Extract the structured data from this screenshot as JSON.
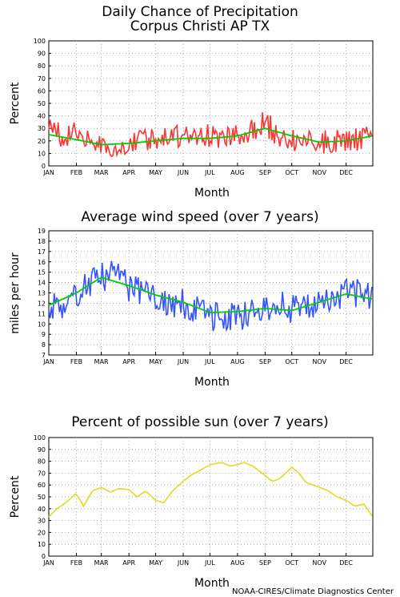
{
  "credit": "NOAA-CIRES/Climate Diagnostics Center",
  "months": [
    "JAN",
    "FEB",
    "MAR",
    "APR",
    "MAY",
    "JUN",
    "JUL",
    "AUG",
    "SEP",
    "OCT",
    "NOV",
    "DEC"
  ],
  "chart_data": [
    {
      "type": "line",
      "title": "Daily Chance of Precipitation",
      "subtitle": "Corpus Christi AP TX",
      "xlabel": "Month",
      "ylabel": "Percent",
      "ylim": [
        0,
        100
      ],
      "yticks": [
        0,
        10,
        20,
        30,
        40,
        50,
        60,
        70,
        80,
        90,
        100
      ],
      "grid": true,
      "series": [
        {
          "color": "#ff3333",
          "style": "daily-bars",
          "x": [
            1,
            15,
            32,
            46,
            60,
            74,
            91,
            105,
            121,
            135,
            152,
            166,
            182,
            196,
            213,
            227,
            244,
            258,
            274,
            288,
            305,
            319,
            335,
            349,
            365
          ],
          "values": [
            30,
            24,
            25,
            22,
            17,
            16,
            18,
            20,
            21,
            22,
            23,
            22,
            24,
            22,
            23,
            28,
            34,
            26,
            22,
            20,
            19,
            20,
            20,
            22,
            23
          ]
        },
        {
          "color": "#00cc00",
          "style": "smoothed",
          "x": [
            1,
            32,
            60,
            91,
            121,
            152,
            182,
            213,
            244,
            274,
            305,
            335,
            365
          ],
          "values": [
            25,
            21,
            17,
            18,
            20,
            22,
            22,
            24,
            30,
            24,
            19,
            20,
            24
          ]
        }
      ]
    },
    {
      "type": "line",
      "title": "Average wind speed (over 7 years)",
      "xlabel": "Month",
      "ylabel": "miles per hour",
      "ylim": [
        7,
        19
      ],
      "yticks": [
        7,
        8,
        9,
        10,
        11,
        12,
        13,
        14,
        15,
        16,
        17,
        18,
        19
      ],
      "grid": true,
      "series": [
        {
          "color": "#3355ff",
          "style": "daily-bars",
          "x": [
            1,
            15,
            32,
            46,
            60,
            74,
            91,
            105,
            121,
            135,
            152,
            166,
            182,
            196,
            213,
            227,
            244,
            258,
            274,
            288,
            305,
            319,
            335,
            349,
            365
          ],
          "values": [
            12,
            11.5,
            13,
            14,
            14.5,
            15,
            13.5,
            13,
            12.5,
            12,
            12,
            11.5,
            10.5,
            11,
            10.5,
            11,
            11.5,
            12,
            11.5,
            11.5,
            12,
            12.5,
            13,
            13,
            12.5
          ]
        },
        {
          "color": "#00cc00",
          "style": "smoothed",
          "x": [
            1,
            32,
            60,
            91,
            121,
            152,
            182,
            213,
            244,
            274,
            305,
            335,
            365
          ],
          "values": [
            11.8,
            13,
            14.5,
            13.7,
            12.8,
            12.1,
            11.1,
            11.2,
            11.5,
            11.3,
            12.1,
            12.9,
            12.4
          ]
        }
      ]
    },
    {
      "type": "line",
      "title": "Percent of possible sun (over 7 years)",
      "xlabel": "Month",
      "ylabel": "Percent",
      "ylim": [
        0,
        100
      ],
      "yticks": [
        0,
        10,
        20,
        30,
        40,
        50,
        60,
        70,
        80,
        90,
        100
      ],
      "grid": true,
      "series": [
        {
          "color": "#dddd22",
          "style": "line",
          "x": [
            1,
            10,
            20,
            32,
            40,
            50,
            60,
            70,
            80,
            91,
            100,
            110,
            121,
            130,
            140,
            152,
            160,
            170,
            182,
            195,
            205,
            213,
            220,
            230,
            244,
            252,
            260,
            274,
            282,
            290,
            305,
            315,
            325,
            335,
            345,
            355,
            365
          ],
          "values": [
            33,
            40,
            45,
            53,
            42,
            55,
            58,
            54,
            57,
            56,
            50,
            55,
            47,
            45,
            55,
            63,
            68,
            72,
            77,
            79,
            76,
            77,
            79,
            76,
            68,
            63,
            65,
            75,
            70,
            62,
            58,
            55,
            50,
            47,
            42,
            44,
            33
          ]
        }
      ]
    }
  ]
}
